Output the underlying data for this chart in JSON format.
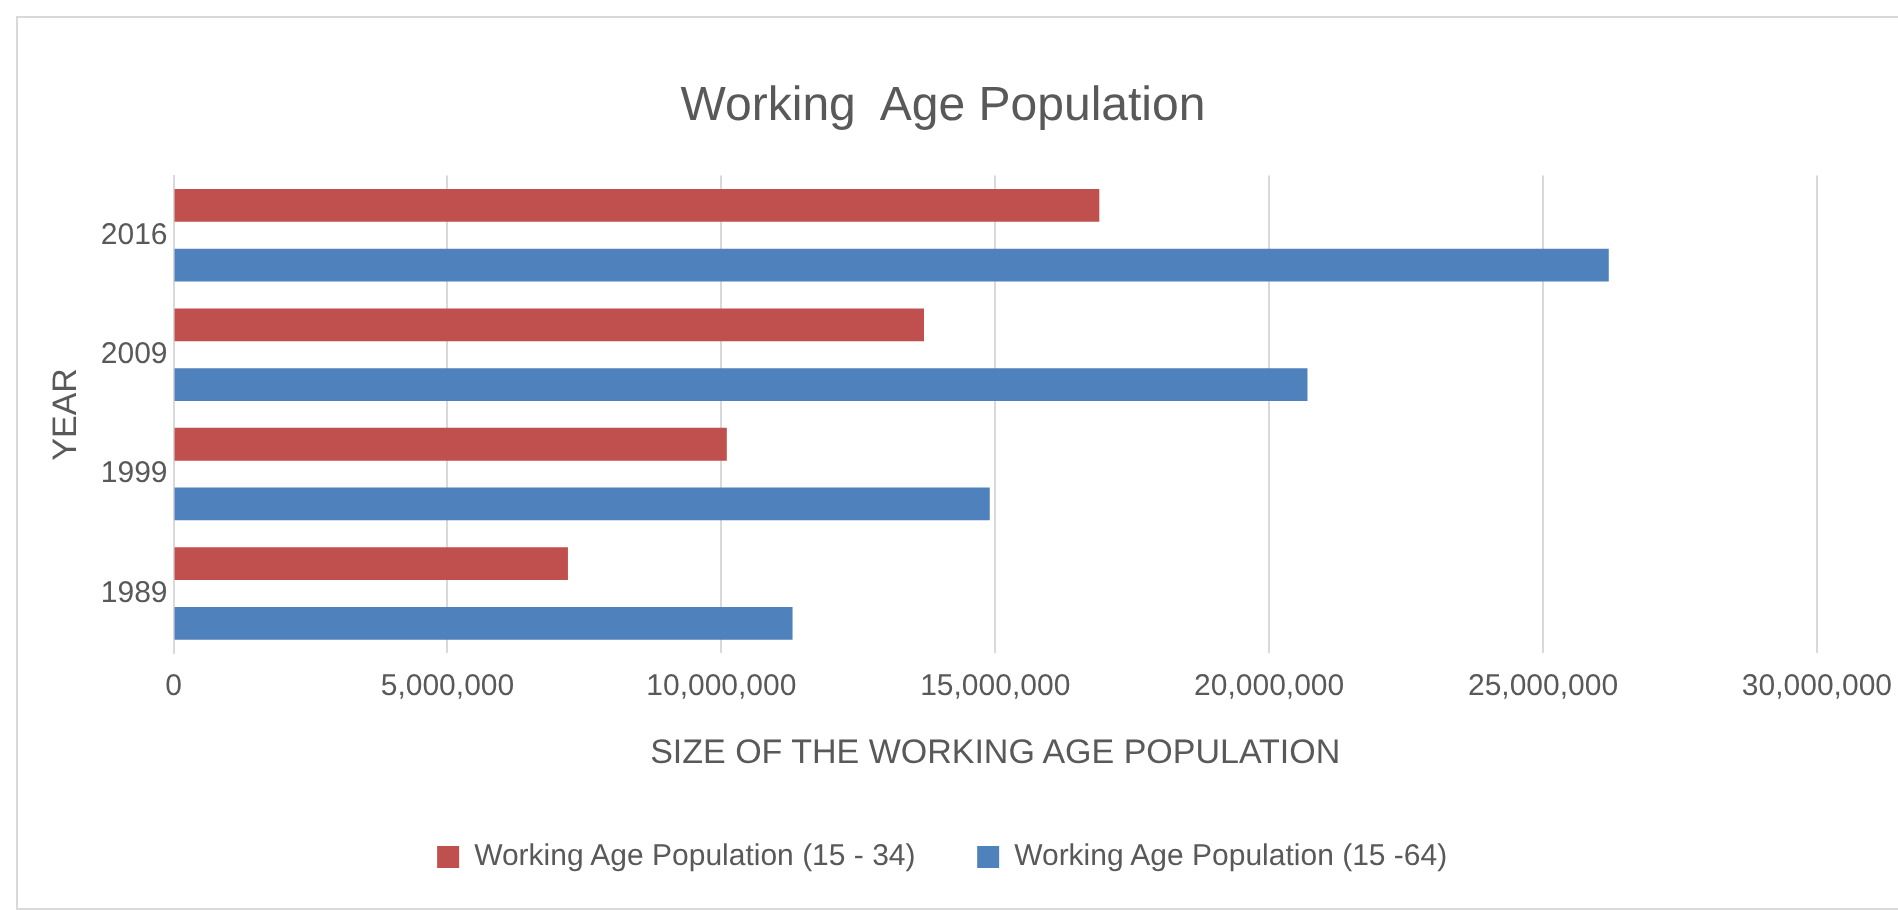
{
  "chart_data": {
    "type": "bar",
    "orientation": "horizontal",
    "title": "Working  Age Population",
    "xlabel": "SIZE OF THE WORKING AGE POPULATION",
    "ylabel": "YEAR",
    "categories": [
      "2016",
      "2009",
      "1999",
      "1989"
    ],
    "series": [
      {
        "name": "Working Age Population (15 - 34)",
        "color": "#c0504d",
        "values": [
          16900000,
          13700000,
          10100000,
          7200000
        ]
      },
      {
        "name": "Working Age Population (15 -64)",
        "color": "#4f81bd",
        "values": [
          26200000,
          20700000,
          14900000,
          11300000
        ]
      }
    ],
    "xlim": [
      0,
      30000000
    ],
    "xticks": [
      0,
      {
        "value": 5000000,
        "label": "5,000,000"
      },
      {
        "value": 10000000,
        "label": "10,000,000"
      },
      {
        "value": 15000000,
        "label": "15,000,000"
      },
      {
        "value": 20000000,
        "label": "20,000,000"
      },
      {
        "value": 25000000,
        "label": "25,000,000"
      },
      {
        "value": 30000000,
        "label": "30,000,000"
      }
    ],
    "grid": "x",
    "legend": "bottom"
  }
}
